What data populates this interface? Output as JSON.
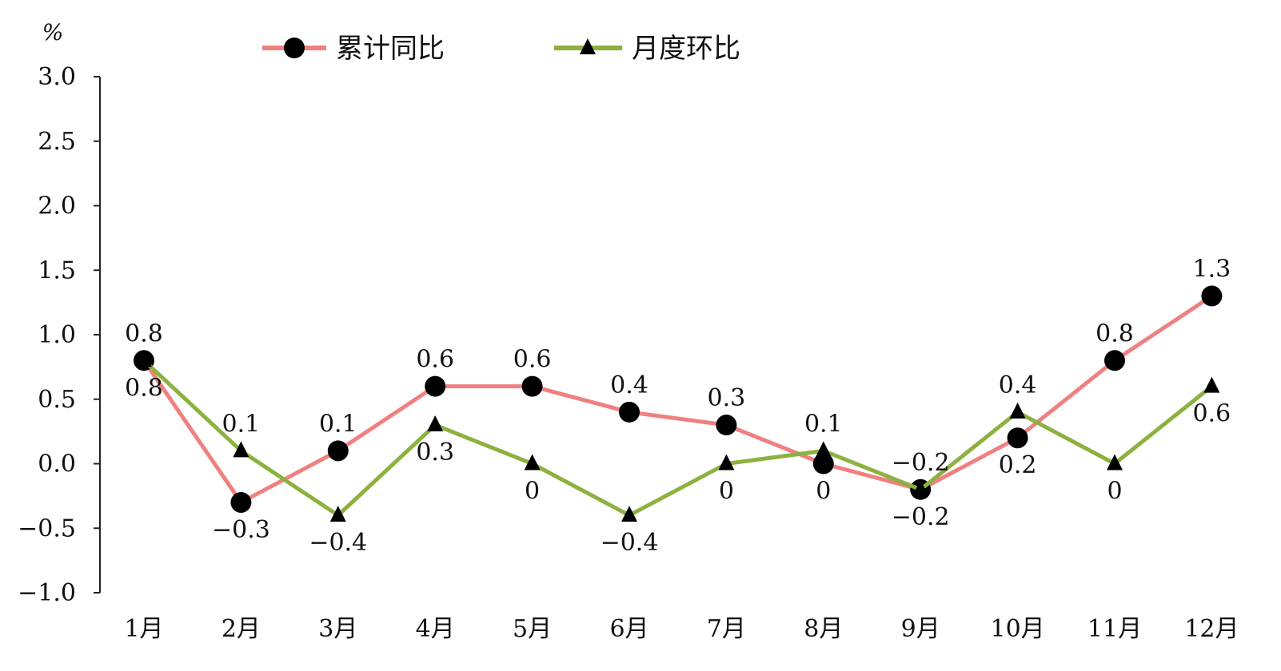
{
  "chart_data": {
    "type": "line",
    "title": "",
    "xlabel": "",
    "ylabel": "%",
    "ylim": [
      -1.0,
      3.0
    ],
    "yticks": [
      "3.0",
      "2.5",
      "2.0",
      "1.5",
      "1.0",
      "0.5",
      "0.0",
      "−0.5",
      "−1.0"
    ],
    "ytick_values": [
      3.0,
      2.5,
      2.0,
      1.5,
      1.0,
      0.5,
      0.0,
      -0.5,
      -1.0
    ],
    "categories": [
      "1月",
      "2月",
      "3月",
      "4月",
      "5月",
      "6月",
      "7月",
      "8月",
      "9月",
      "10月",
      "11月",
      "12月"
    ],
    "legend_position": "top",
    "grid": false,
    "series": [
      {
        "name": "累计同比",
        "color": "#f08080",
        "marker": "circle",
        "values": [
          0.8,
          -0.3,
          0.1,
          0.6,
          0.6,
          0.4,
          0.3,
          0.0,
          -0.2,
          0.2,
          0.8,
          1.3
        ],
        "labels": [
          "0.8",
          "−0.3",
          "0.1",
          "0.6",
          "0.6",
          "0.4",
          "0.3",
          "0",
          "−0.2",
          "0.2",
          "0.8",
          "1.3"
        ],
        "label_side": [
          "above",
          "below",
          "above",
          "above",
          "above",
          "above",
          "above",
          "below",
          "below",
          "below",
          "above",
          "above"
        ]
      },
      {
        "name": "月度环比",
        "color": "#8db13f",
        "marker": "triangle",
        "values": [
          0.8,
          0.1,
          -0.4,
          0.3,
          0.0,
          -0.4,
          0.0,
          0.1,
          -0.2,
          0.4,
          0.0,
          0.6
        ],
        "labels": [
          "0.8",
          "0.1",
          "−0.4",
          "0.3",
          "0",
          "−0.4",
          "0",
          "0.1",
          "−0.2",
          "0.4",
          "0",
          "0.6"
        ],
        "label_side": [
          "below",
          "above",
          "below",
          "below",
          "below",
          "below",
          "below",
          "above",
          "above",
          "above",
          "below",
          "below"
        ]
      }
    ]
  }
}
